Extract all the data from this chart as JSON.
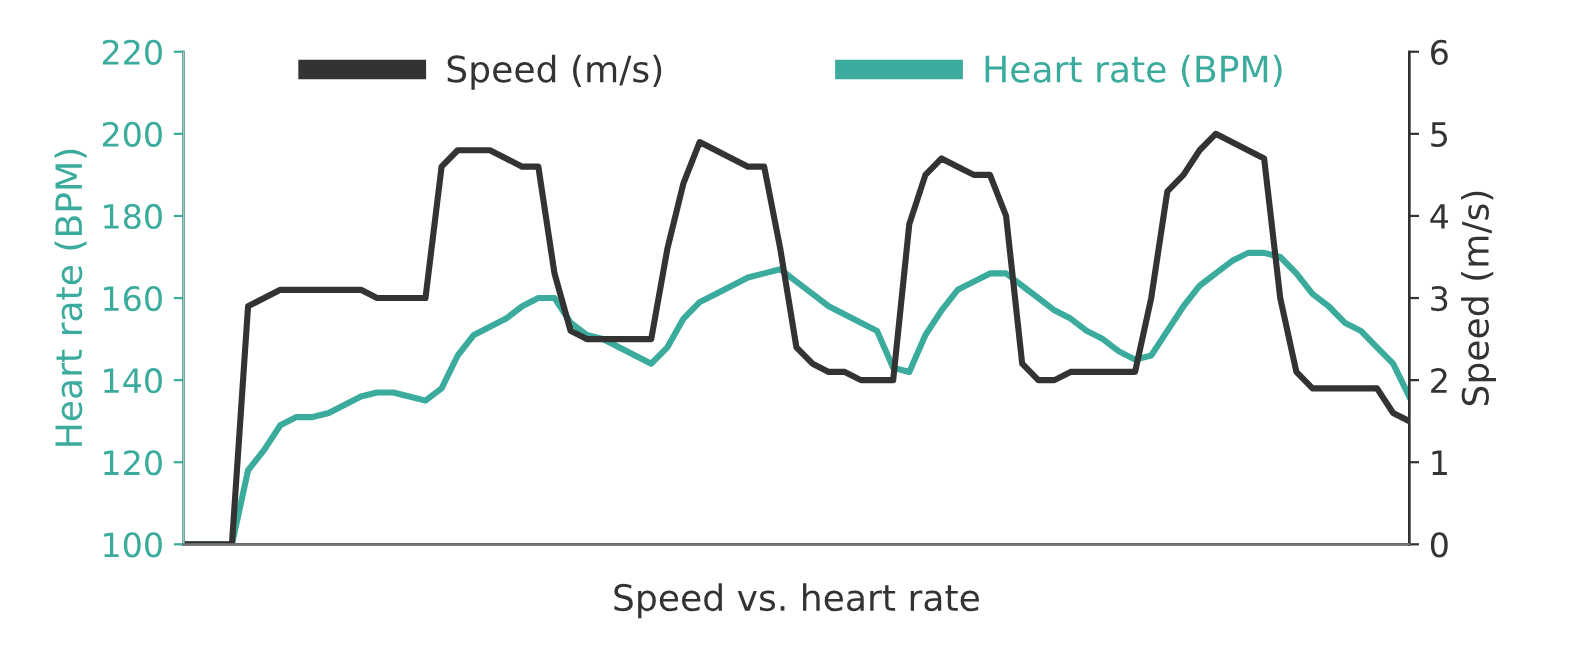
{
  "chart_data": {
    "type": "line",
    "xlabel": "Speed vs. heart rate",
    "ylabel": "Heart rate (BPM)",
    "y2label": "Speed (m/s)",
    "categories": [
      null,
      null,
      null,
      null,
      null,
      null,
      null,
      null,
      null,
      null,
      null,
      null,
      null,
      null,
      null,
      null,
      null,
      null,
      null,
      null,
      null,
      null,
      null,
      null,
      null,
      null,
      null,
      null,
      null,
      null,
      null,
      null,
      null,
      null,
      null,
      null,
      null,
      null,
      null,
      null,
      null,
      null,
      null,
      null,
      null,
      null,
      null,
      null,
      null,
      null,
      null,
      null,
      null,
      null,
      null,
      null,
      null,
      null,
      null,
      null,
      null,
      null,
      null,
      null,
      null,
      null,
      null,
      null,
      null,
      null,
      null,
      null,
      null,
      null,
      null,
      null,
      null
    ],
    "series": [
      {
        "name": "Speed (m/s)",
        "color": "#333333",
        "axis": "y2",
        "values": [
          0,
          0,
          0,
          0,
          2.9,
          3.0,
          3.1,
          3.1,
          3.1,
          3.1,
          3.1,
          3.1,
          3.0,
          3.0,
          3.0,
          3.0,
          4.6,
          4.8,
          4.8,
          4.8,
          4.7,
          4.6,
          4.6,
          3.3,
          2.6,
          2.5,
          2.5,
          2.5,
          2.5,
          2.5,
          3.6,
          4.4,
          4.9,
          4.8,
          4.7,
          4.6,
          4.6,
          3.6,
          2.4,
          2.2,
          2.1,
          2.1,
          2.0,
          2.0,
          2.0,
          3.9,
          4.5,
          4.7,
          4.6,
          4.5,
          4.5,
          4.0,
          2.2,
          2.0,
          2.0,
          2.1,
          2.1,
          2.1,
          2.1,
          2.1,
          3.0,
          4.3,
          4.5,
          4.8,
          5.0,
          4.9,
          4.8,
          4.7,
          3.0,
          2.1,
          1.9,
          1.9,
          1.9,
          1.9,
          1.9,
          1.6,
          1.5
        ]
      },
      {
        "name": "Heart rate (BPM)",
        "color": "#3aab9c",
        "values": [
          100,
          100,
          100,
          100,
          118,
          123,
          129,
          131,
          131,
          132,
          134,
          136,
          137,
          137,
          136,
          135,
          138,
          146,
          151,
          153,
          155,
          158,
          160,
          160,
          154,
          151,
          150,
          148,
          146,
          144,
          148,
          155,
          159,
          161,
          163,
          165,
          166,
          167,
          164,
          161,
          158,
          156,
          154,
          152,
          143,
          142,
          151,
          157,
          162,
          164,
          166,
          166,
          163,
          160,
          157,
          155,
          152,
          150,
          147,
          145,
          146,
          152,
          158,
          163,
          166,
          169,
          171,
          171,
          170,
          166,
          161,
          158,
          154,
          152,
          148,
          144,
          136
        ]
      }
    ],
    "ylim": [
      100,
      220
    ],
    "yticks": [
      100,
      120,
      140,
      160,
      180,
      200,
      220
    ],
    "y2lim": [
      0,
      6
    ],
    "y2ticks": [
      0,
      1,
      2,
      3,
      4,
      5,
      6
    ],
    "legend": "top",
    "tick_labels": "y",
    "grid": false
  }
}
